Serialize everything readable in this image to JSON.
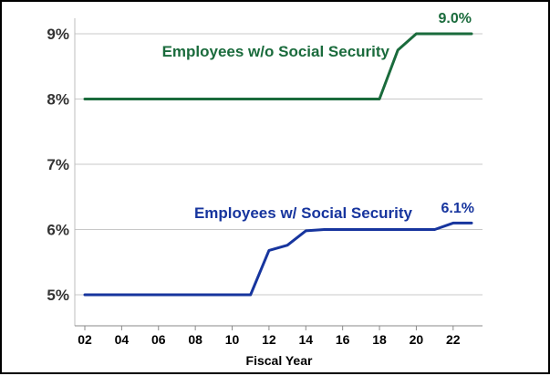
{
  "chart_data": {
    "type": "line",
    "xlabel": "Fiscal Year",
    "ylabel": "",
    "title": "",
    "xlim": [
      2,
      23
    ],
    "ylim": [
      5,
      9
    ],
    "x_ticks": [
      2,
      4,
      6,
      8,
      10,
      12,
      14,
      16,
      18,
      20,
      22
    ],
    "x_tick_labels": [
      "02",
      "04",
      "06",
      "08",
      "10",
      "12",
      "14",
      "16",
      "18",
      "20",
      "22"
    ],
    "y_ticks": [
      5,
      6,
      7,
      8,
      9
    ],
    "y_tick_labels": [
      "5%",
      "6%",
      "7%",
      "8%",
      "9%"
    ],
    "grid": "horizontal",
    "series": [
      {
        "name": "Employees w/o Social Security",
        "color": "#1a6b3c",
        "x": [
          2,
          3,
          4,
          5,
          6,
          7,
          8,
          9,
          10,
          11,
          12,
          13,
          14,
          15,
          16,
          17,
          18,
          19,
          20,
          21,
          22,
          23
        ],
        "values": [
          8.0,
          8.0,
          8.0,
          8.0,
          8.0,
          8.0,
          8.0,
          8.0,
          8.0,
          8.0,
          8.0,
          8.0,
          8.0,
          8.0,
          8.0,
          8.0,
          8.0,
          8.75,
          9.0,
          9.0,
          9.0,
          9.0
        ],
        "end_label": "9.0%"
      },
      {
        "name": "Employees w/ Social Security",
        "color": "#17359e",
        "x": [
          2,
          3,
          4,
          5,
          6,
          7,
          8,
          9,
          10,
          11,
          12,
          13,
          14,
          15,
          16,
          17,
          18,
          19,
          20,
          21,
          22,
          23
        ],
        "values": [
          5.0,
          5.0,
          5.0,
          5.0,
          5.0,
          5.0,
          5.0,
          5.0,
          5.0,
          5.0,
          5.68,
          5.76,
          5.98,
          6.0,
          6.0,
          6.0,
          6.0,
          6.0,
          6.0,
          6.0,
          6.1,
          6.1
        ],
        "end_label": "6.1%"
      }
    ]
  }
}
